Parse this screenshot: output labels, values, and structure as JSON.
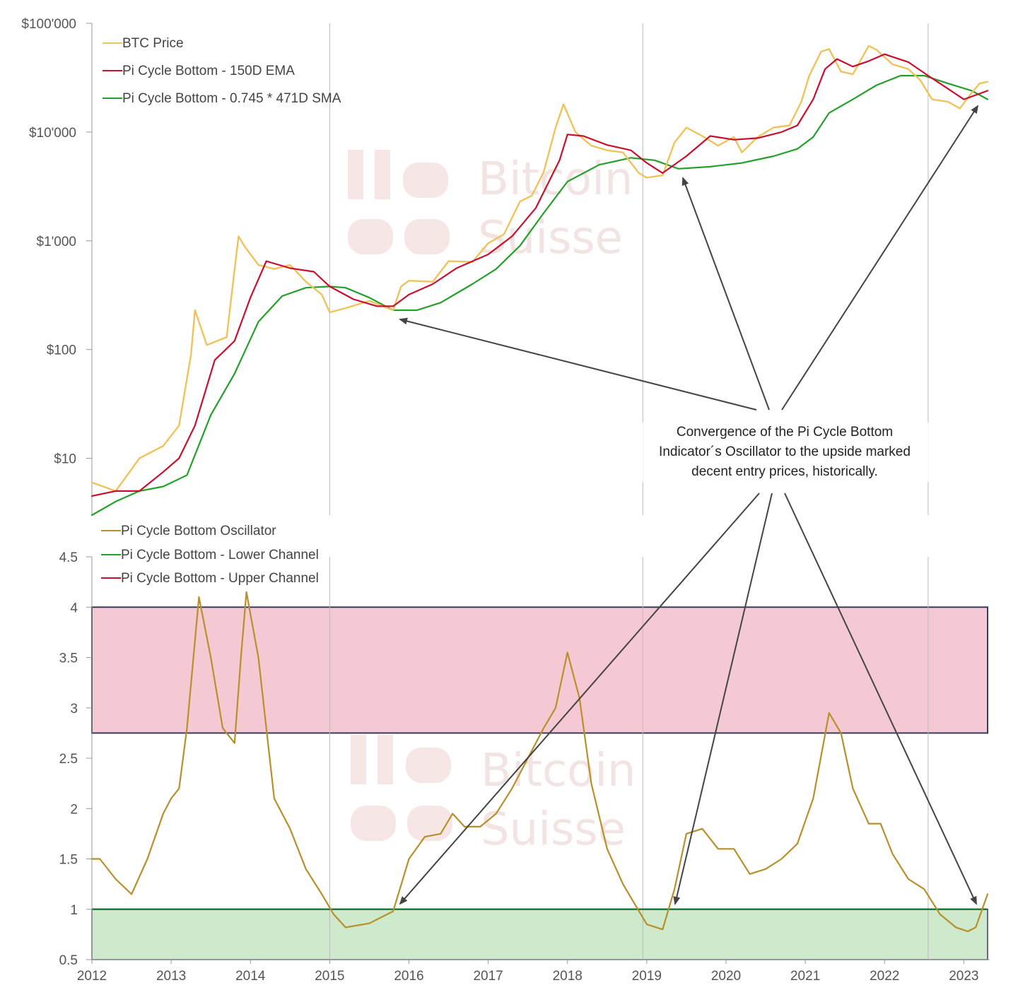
{
  "watermark": {
    "line1": "Bitcoin",
    "line2": "Suisse"
  },
  "annotation": {
    "line1": "Convergence of the Pi Cycle Bottom",
    "line2": "Indicator´s Oscillator to the upside marked",
    "line3": "decent entry prices, historically."
  },
  "colors": {
    "btc": "#f0c35a",
    "ema": "#c8102e",
    "sma": "#22a02a",
    "osc": "#b8902a",
    "upper_band": "#f5c9d3",
    "lower_band": "#cfe9cc",
    "band_border": "#3a3a5c"
  },
  "chart_data": [
    {
      "type": "line",
      "title": "",
      "yscale": "log",
      "ylim": [
        3,
        100000
      ],
      "xlim": [
        2012.0,
        2023.3
      ],
      "yticks": [
        {
          "value": 10,
          "label": "$10"
        },
        {
          "value": 100,
          "label": "$100"
        },
        {
          "value": 1000,
          "label": "$1'000"
        },
        {
          "value": 10000,
          "label": "$10'000"
        },
        {
          "value": 100000,
          "label": "$100'000"
        }
      ],
      "vlines": [
        2015.0,
        2018.95,
        2022.55
      ],
      "legend": [
        "BTC Price",
        "Pi Cycle Bottom - 150D EMA",
        "Pi Cycle Bottom - 0.745 * 471D SMA"
      ],
      "series": [
        {
          "name": "BTC Price",
          "color": "#f0c35a",
          "x": [
            2012.0,
            2012.3,
            2012.6,
            2012.9,
            2013.1,
            2013.25,
            2013.3,
            2013.45,
            2013.7,
            2013.85,
            2013.92,
            2014.1,
            2014.3,
            2014.5,
            2014.7,
            2014.9,
            2015.0,
            2015.2,
            2015.5,
            2015.8,
            2015.9,
            2016.0,
            2016.3,
            2016.5,
            2016.8,
            2017.0,
            2017.2,
            2017.4,
            2017.55,
            2017.7,
            2017.85,
            2017.95,
            2018.1,
            2018.3,
            2018.5,
            2018.7,
            2018.9,
            2019.0,
            2019.2,
            2019.35,
            2019.5,
            2019.7,
            2019.9,
            2020.1,
            2020.2,
            2020.4,
            2020.6,
            2020.8,
            2020.95,
            2021.05,
            2021.2,
            2021.3,
            2021.45,
            2021.6,
            2021.8,
            2021.9,
            2022.1,
            2022.3,
            2022.45,
            2022.6,
            2022.8,
            2022.95,
            2023.1,
            2023.2,
            2023.3
          ],
          "y": [
            6,
            5,
            10,
            13,
            20,
            90,
            230,
            110,
            130,
            1100,
            900,
            600,
            550,
            600,
            420,
            320,
            220,
            240,
            280,
            230,
            380,
            430,
            420,
            650,
            640,
            950,
            1150,
            2300,
            2600,
            4300,
            11000,
            18000,
            10000,
            7500,
            6800,
            6500,
            4200,
            3800,
            4000,
            8000,
            11000,
            9200,
            7500,
            9000,
            6500,
            9000,
            11000,
            11500,
            19000,
            33000,
            55000,
            58000,
            36000,
            34000,
            62000,
            57000,
            42000,
            38000,
            30000,
            20000,
            19000,
            16500,
            23000,
            28000,
            29000
          ]
        },
        {
          "name": "Pi Cycle Bottom - 150D EMA",
          "color": "#c8102e",
          "x": [
            2012.0,
            2012.3,
            2012.6,
            2012.9,
            2013.1,
            2013.3,
            2013.55,
            2013.8,
            2014.0,
            2014.2,
            2014.5,
            2014.8,
            2015.0,
            2015.3,
            2015.6,
            2015.8,
            2016.0,
            2016.3,
            2016.6,
            2017.0,
            2017.3,
            2017.6,
            2017.9,
            2018.0,
            2018.2,
            2018.5,
            2018.8,
            2019.0,
            2019.2,
            2019.5,
            2019.8,
            2020.1,
            2020.4,
            2020.7,
            2020.9,
            2021.1,
            2021.25,
            2021.4,
            2021.6,
            2021.8,
            2022.0,
            2022.3,
            2022.55,
            2022.8,
            2023.0,
            2023.3
          ],
          "y": [
            4.5,
            5,
            5,
            7.5,
            10,
            20,
            80,
            120,
            300,
            650,
            560,
            520,
            380,
            290,
            250,
            250,
            320,
            400,
            560,
            750,
            1100,
            2000,
            5500,
            9500,
            9200,
            7600,
            6800,
            5200,
            4200,
            6000,
            9200,
            8500,
            8800,
            10000,
            11500,
            20000,
            38000,
            47000,
            40000,
            45000,
            52000,
            44000,
            33000,
            25000,
            20000,
            24000
          ]
        },
        {
          "name": "Pi Cycle Bottom - 0.745 * 471D SMA",
          "color": "#22a02a",
          "x": [
            2012.0,
            2012.3,
            2012.6,
            2012.9,
            2013.2,
            2013.5,
            2013.8,
            2014.1,
            2014.4,
            2014.7,
            2015.0,
            2015.2,
            2015.5,
            2015.8,
            2016.1,
            2016.4,
            2016.8,
            2017.1,
            2017.4,
            2017.7,
            2018.0,
            2018.4,
            2018.8,
            2019.1,
            2019.4,
            2019.8,
            2020.2,
            2020.6,
            2020.9,
            2021.1,
            2021.3,
            2021.6,
            2021.9,
            2022.2,
            2022.5,
            2022.8,
            2023.1,
            2023.3
          ],
          "y": [
            3,
            4,
            5,
            5.5,
            7,
            25,
            60,
            180,
            310,
            370,
            380,
            370,
            300,
            230,
            230,
            270,
            400,
            550,
            900,
            1800,
            3500,
            5000,
            5800,
            5500,
            4600,
            4800,
            5200,
            6000,
            7000,
            9000,
            15000,
            20000,
            27000,
            33000,
            33000,
            28000,
            24000,
            20000
          ]
        }
      ]
    },
    {
      "type": "line",
      "title": "",
      "ylim": [
        0.5,
        4.5
      ],
      "xlim": [
        2012.0,
        2023.3
      ],
      "yticks": [
        0.5,
        1,
        1.5,
        2,
        2.5,
        3,
        3.5,
        4,
        4.5
      ],
      "ytick_labels": [
        "0.5",
        "1",
        "1.5",
        "2",
        "2.5",
        "3",
        "3.5",
        "4",
        "4.5"
      ],
      "xticks": [
        2012,
        2013,
        2014,
        2015,
        2016,
        2017,
        2018,
        2019,
        2020,
        2021,
        2022,
        2023
      ],
      "xtick_labels": [
        "2012",
        "2013",
        "2014",
        "2015",
        "2016",
        "2017",
        "2018",
        "2019",
        "2020",
        "2021",
        "2022",
        "2023"
      ],
      "vlines": [
        2015.0,
        2018.95,
        2022.55
      ],
      "upper_channel": [
        2.75,
        4.0
      ],
      "lower_channel": [
        0.5,
        1.0
      ],
      "legend": [
        "Pi Cycle Bottom Oscillator",
        "Pi Cycle Bottom - Lower Channel",
        "Pi Cycle Bottom -  Upper Channel"
      ],
      "series": [
        {
          "name": "Pi Cycle Bottom Oscillator",
          "color": "#b8902a",
          "x": [
            2012.0,
            2012.1,
            2012.3,
            2012.5,
            2012.7,
            2012.9,
            2013.0,
            2013.1,
            2013.2,
            2013.35,
            2013.5,
            2013.65,
            2013.8,
            2013.88,
            2013.95,
            2014.1,
            2014.3,
            2014.5,
            2014.7,
            2014.9,
            2015.05,
            2015.2,
            2015.5,
            2015.8,
            2016.0,
            2016.2,
            2016.4,
            2016.55,
            2016.7,
            2016.9,
            2017.1,
            2017.3,
            2017.5,
            2017.7,
            2017.85,
            2018.0,
            2018.15,
            2018.3,
            2018.5,
            2018.7,
            2018.85,
            2019.0,
            2019.2,
            2019.35,
            2019.5,
            2019.7,
            2019.9,
            2020.1,
            2020.3,
            2020.5,
            2020.7,
            2020.9,
            2021.1,
            2021.3,
            2021.45,
            2021.6,
            2021.8,
            2021.95,
            2022.1,
            2022.3,
            2022.5,
            2022.7,
            2022.9,
            2023.05,
            2023.15,
            2023.3
          ],
          "y": [
            1.5,
            1.5,
            1.3,
            1.15,
            1.5,
            1.95,
            2.1,
            2.2,
            2.8,
            4.1,
            3.5,
            2.8,
            2.65,
            3.5,
            4.15,
            3.5,
            2.1,
            1.8,
            1.4,
            1.15,
            0.95,
            0.82,
            0.86,
            0.98,
            1.5,
            1.72,
            1.75,
            1.95,
            1.82,
            1.82,
            1.95,
            2.2,
            2.5,
            2.8,
            3.0,
            3.55,
            3.1,
            2.25,
            1.6,
            1.25,
            1.05,
            0.85,
            0.8,
            1.2,
            1.75,
            1.8,
            1.6,
            1.6,
            1.35,
            1.4,
            1.5,
            1.65,
            2.1,
            2.95,
            2.75,
            2.2,
            1.85,
            1.85,
            1.55,
            1.3,
            1.2,
            0.95,
            0.82,
            0.78,
            0.82,
            1.15
          ]
        }
      ]
    }
  ]
}
